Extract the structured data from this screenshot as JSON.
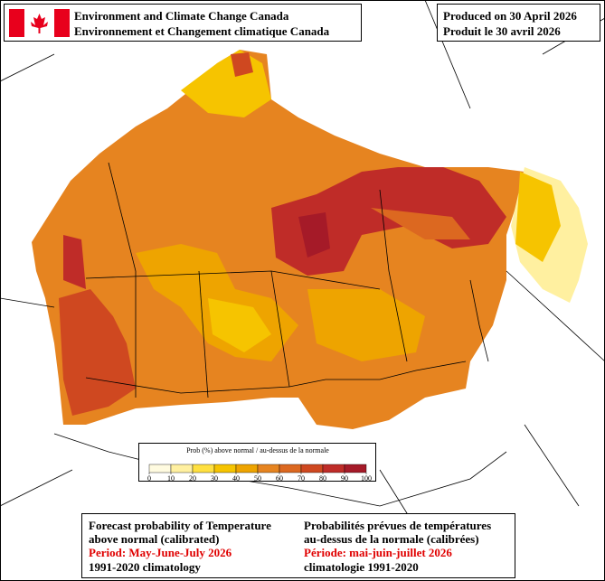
{
  "header": {
    "agency_en": "Environment and Climate Change Canada",
    "agency_fr": "Environnement et Changement climatique Canada",
    "produced_en": "Produced on 30 April 2026",
    "produced_fr": "Produit le 30 avril 2026"
  },
  "legend": {
    "title": "Prob (%) above normal / au-dessus de la normale",
    "ticks": [
      0,
      10,
      20,
      30,
      40,
      50,
      60,
      70,
      80,
      90,
      100
    ],
    "colors": [
      "#fffbe0",
      "#fff0a0",
      "#ffe040",
      "#f6c400",
      "#eea400",
      "#e68420",
      "#dc6820",
      "#cf4820",
      "#bf2c28",
      "#a51a28"
    ]
  },
  "footer": {
    "en": {
      "line1": "Forecast probability of Temperature",
      "line2": "above normal (calibrated)",
      "period": "Period: May-June-July 2026",
      "climatology": "1991-2020 climatology"
    },
    "fr": {
      "line1": "Probabilités prévues de températures",
      "line2": "au-dessus de la normale (calibrées)",
      "period": "Période: mai-juin-juillet 2026",
      "climatology": "climatologie 1991-2020"
    }
  }
}
